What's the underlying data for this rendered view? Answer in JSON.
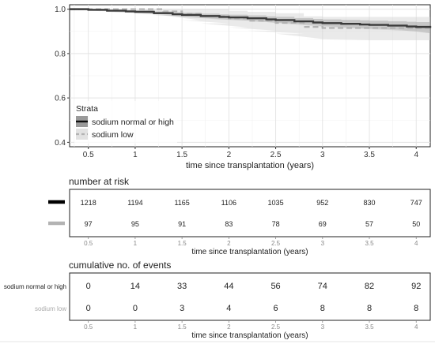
{
  "chart_data": [
    {
      "type": "line",
      "subtype": "kaplan-meier survival with confidence bands",
      "xlabel": "time since transplantation (years)",
      "ylabel": "",
      "xlim": [
        0.3,
        4.15
      ],
      "ylim": [
        0.38,
        1.02
      ],
      "xticks": [
        0.5,
        1,
        1.5,
        2,
        2.5,
        3,
        3.5,
        4
      ],
      "xtick_labels": [
        "0.5",
        "1",
        "1.5",
        "2",
        "2.5",
        "3",
        "3.5",
        "4"
      ],
      "yticks": [
        0.4,
        0.6,
        0.8,
        1.0
      ],
      "ytick_labels": [
        "0.4",
        "0.6",
        "0.8",
        "1.0"
      ],
      "grid": true,
      "legend": {
        "title": "Strata",
        "placement": "bottom-left",
        "entries": [
          "sodium normal or high",
          "sodium low"
        ]
      },
      "series": [
        {
          "name": "sodium normal or high",
          "color": "#1a1a1a",
          "style": "solid",
          "x": [
            0.3,
            0.5,
            0.7,
            0.9,
            1.0,
            1.2,
            1.4,
            1.5,
            1.7,
            1.9,
            2.0,
            2.2,
            2.4,
            2.5,
            2.7,
            2.9,
            3.0,
            3.2,
            3.4,
            3.5,
            3.7,
            3.9,
            4.0,
            4.15
          ],
          "y": [
            1.0,
            0.997,
            0.993,
            0.99,
            0.988,
            0.982,
            0.977,
            0.974,
            0.969,
            0.965,
            0.963,
            0.959,
            0.954,
            0.951,
            0.945,
            0.94,
            0.937,
            0.934,
            0.931,
            0.929,
            0.926,
            0.922,
            0.92,
            0.915
          ],
          "ci_lower": [
            1.0,
            0.993,
            0.988,
            0.984,
            0.981,
            0.974,
            0.968,
            0.964,
            0.958,
            0.953,
            0.951,
            0.946,
            0.94,
            0.936,
            0.93,
            0.924,
            0.92,
            0.916,
            0.912,
            0.91,
            0.906,
            0.901,
            0.898,
            0.892
          ],
          "ci_upper": [
            1.0,
            1.0,
            0.998,
            0.996,
            0.995,
            0.99,
            0.986,
            0.984,
            0.98,
            0.977,
            0.975,
            0.972,
            0.968,
            0.966,
            0.96,
            0.956,
            0.954,
            0.952,
            0.95,
            0.948,
            0.946,
            0.943,
            0.942,
            0.938
          ]
        },
        {
          "name": "sodium low",
          "color": "#b3b3b3",
          "style": "dashed",
          "x": [
            0.3,
            1.0,
            1.3,
            1.5,
            1.7,
            2.0,
            2.2,
            2.5,
            2.8,
            3.0,
            3.5,
            4.0,
            4.15
          ],
          "y": [
            1.0,
            1.0,
            0.99,
            0.979,
            0.969,
            0.958,
            0.948,
            0.938,
            0.92,
            0.915,
            0.915,
            0.915,
            0.915
          ],
          "ci_lower": [
            1.0,
            1.0,
            0.972,
            0.95,
            0.936,
            0.918,
            0.903,
            0.89,
            0.866,
            0.86,
            0.86,
            0.86,
            0.86
          ],
          "ci_upper": [
            1.0,
            1.0,
            1.0,
            1.0,
            1.0,
            0.993,
            0.988,
            0.982,
            0.968,
            0.965,
            0.965,
            0.965,
            0.965
          ]
        }
      ]
    },
    {
      "type": "table",
      "title": "number at risk",
      "xlabel": "time since transplantation (years)",
      "x": [
        0.5,
        1,
        1.5,
        2,
        2.5,
        3,
        3.5,
        4
      ],
      "xtick_labels": [
        "0.5",
        "1",
        "1.5",
        "2",
        "2.5",
        "3",
        "3.5",
        "4"
      ],
      "rows": [
        {
          "key": "sodium normal or high",
          "color": "#000000",
          "values": [
            "1218",
            "1194",
            "1165",
            "1106",
            "1035",
            "952",
            "830",
            "747"
          ]
        },
        {
          "key": "sodium low",
          "color": "#b3b3b3",
          "values": [
            "97",
            "95",
            "91",
            "83",
            "78",
            "69",
            "57",
            "50"
          ]
        }
      ]
    },
    {
      "type": "table",
      "title": "cumulative no. of events",
      "xlabel": "time since transplantation (years)",
      "x": [
        0.5,
        1,
        1.5,
        2,
        2.5,
        3,
        3.5,
        4
      ],
      "xtick_labels": [
        "0.5",
        "1",
        "1.5",
        "2",
        "2.5",
        "3",
        "3.5",
        "4"
      ],
      "rows": [
        {
          "label": "sodium normal or high",
          "color": "#000000",
          "values": [
            "0",
            "14",
            "33",
            "44",
            "56",
            "74",
            "82",
            "92"
          ]
        },
        {
          "label": "sodium low",
          "color": "#b3b3b3",
          "values": [
            "0",
            "0",
            "3",
            "4",
            "6",
            "8",
            "8",
            "8"
          ]
        }
      ]
    }
  ]
}
